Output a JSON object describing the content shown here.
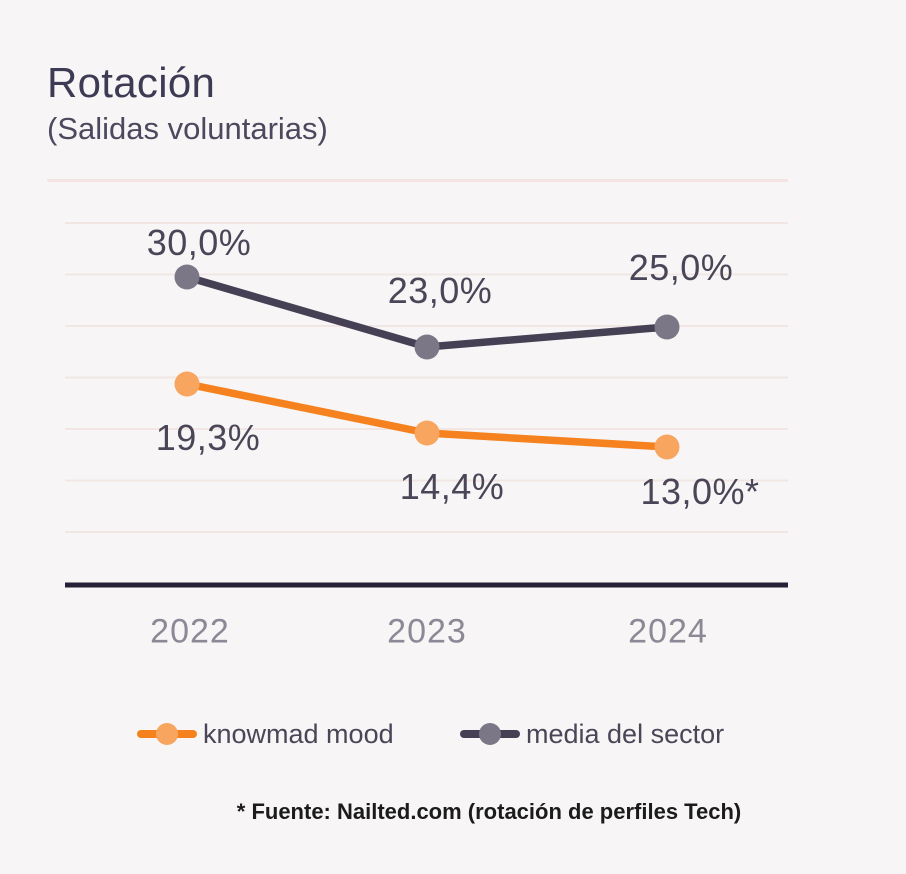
{
  "header": {
    "title": "Rotación",
    "subtitle": "(Salidas voluntarias)"
  },
  "chart_data": {
    "type": "line",
    "x": [
      "2022",
      "2023",
      "2024"
    ],
    "series": [
      {
        "name": "knowmad mood",
        "values": [
          19.3,
          14.4,
          13.0
        ],
        "labels": [
          "19,3%",
          "14,4%",
          "13,0%*"
        ],
        "color": "#f5821f",
        "marker_color": "#f8a55f"
      },
      {
        "name": "media del sector",
        "values": [
          30.0,
          23.0,
          25.0
        ],
        "labels": [
          "30,0%",
          "23,0%",
          "25,0%"
        ],
        "color": "#454054",
        "marker_color": "#7b7787"
      }
    ],
    "title": "Rotación (Salidas voluntarias)",
    "xlabel": "",
    "ylabel": "",
    "ylim": [
      0,
      35
    ],
    "grid": true,
    "legend_position": "bottom"
  },
  "footnote": {
    "text": "* Fuente: Nailted.com (rotación de perfiles Tech)"
  },
  "colors": {
    "background": "#f7f5f5",
    "title": "#3d3a54",
    "subtitle": "#4c495e",
    "divider": "#f3e4e1",
    "gridline": "#f2e6e4",
    "axis": "#232038",
    "data_label": "#4a4658",
    "year_label": "#8b8995",
    "legend_label": "#4a4658",
    "footnote": "#1b1b1b"
  }
}
